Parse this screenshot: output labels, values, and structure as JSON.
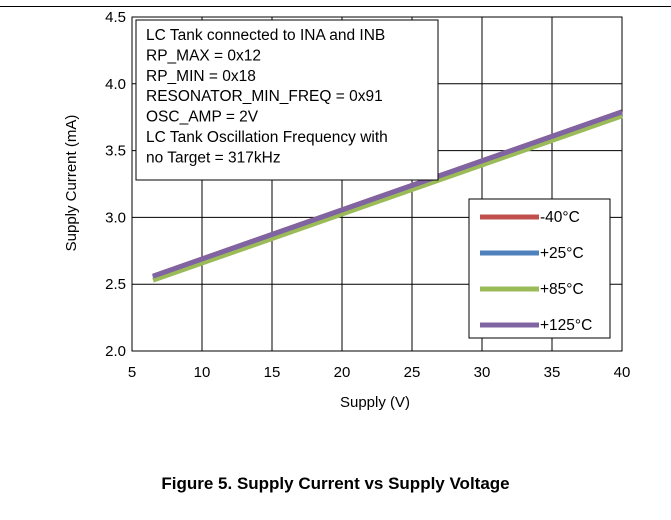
{
  "caption": "Figure 5. Supply Current vs Supply Voltage",
  "chart_data": {
    "type": "line",
    "xlabel": "Supply (V)",
    "ylabel": "Supply Current (mA)",
    "xlim": [
      5,
      40
    ],
    "ylim": [
      2.0,
      4.5
    ],
    "xticks": [
      5,
      10,
      15,
      20,
      25,
      30,
      35,
      40
    ],
    "yticks": [
      2.0,
      2.5,
      3.0,
      3.5,
      4.0,
      4.5
    ],
    "ytick_labels": [
      "2.0",
      "2.5",
      "3.0",
      "3.5",
      "4.0",
      "4.5"
    ],
    "grid": true,
    "legend_position": "bottom-right",
    "annotation_lines": [
      "LC Tank connected to INA and INB",
      "RP_MAX = 0x12",
      "RP_MIN = 0x18",
      "RESONATOR_MIN_FREQ = 0x91",
      "OSC_AMP = 2V",
      "LC Tank Oscillation Frequency with",
      "no Target = 317kHz"
    ],
    "series": [
      {
        "name": "-40°C",
        "color": "#C0504D",
        "x": [
          6.5,
          40
        ],
        "y": [
          2.56,
          3.79
        ]
      },
      {
        "name": "+25°C",
        "color": "#4F81BD",
        "x": [
          6.5,
          40
        ],
        "y": [
          2.55,
          3.78
        ]
      },
      {
        "name": "+85°C",
        "color": "#9BBB59",
        "x": [
          6.5,
          40
        ],
        "y": [
          2.53,
          3.76
        ]
      },
      {
        "name": "+125°C",
        "color": "#8064A2",
        "x": [
          6.5,
          40
        ],
        "y": [
          2.56,
          3.79
        ]
      }
    ]
  }
}
